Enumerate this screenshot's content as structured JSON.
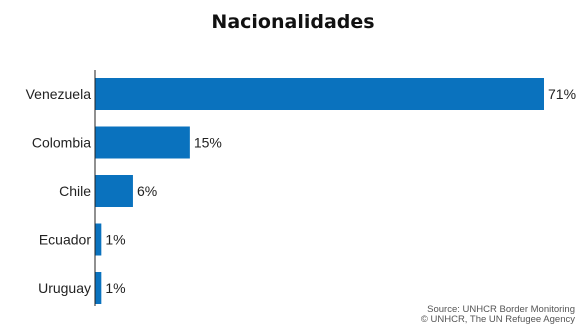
{
  "chart_data": {
    "type": "bar",
    "orientation": "horizontal",
    "title": "Nacionalidades",
    "xlabel": "",
    "ylabel": "",
    "categories": [
      "Venezuela",
      "Colombia",
      "Chile",
      "Ecuador",
      "Uruguay"
    ],
    "values": [
      71,
      15,
      6,
      1,
      1
    ],
    "value_labels": [
      "71%",
      "15%",
      "6%",
      "1%",
      "1%"
    ],
    "unit": "%",
    "xlim": [
      0,
      71
    ],
    "grid": false,
    "legend": "none",
    "colors": {
      "bar": "#0a72be",
      "axis": "#222222",
      "text": "#222222"
    }
  },
  "source": {
    "line1": "Source: UNHCR Border Monitoring",
    "line2": "© UNHCR, The UN Refugee Agency"
  }
}
